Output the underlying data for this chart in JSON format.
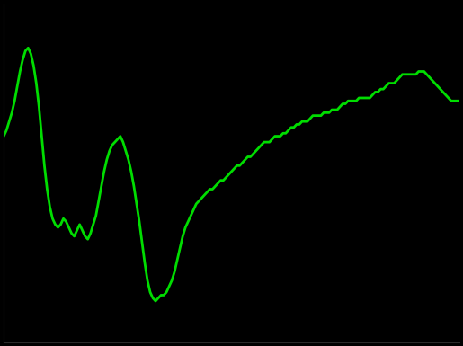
{
  "background_color": "#000000",
  "line_color": "#00dd00",
  "line_width": 2.0,
  "y_values": [
    170,
    172,
    175,
    178,
    182,
    187,
    192,
    196,
    199,
    200,
    198,
    194,
    188,
    180,
    170,
    160,
    152,
    146,
    142,
    140,
    139,
    140,
    142,
    141,
    139,
    137,
    136,
    138,
    140,
    138,
    136,
    135,
    137,
    140,
    143,
    148,
    153,
    158,
    162,
    165,
    167,
    168,
    169,
    170,
    168,
    165,
    162,
    158,
    153,
    147,
    141,
    134,
    127,
    121,
    117,
    115,
    114,
    115,
    116,
    116,
    117,
    119,
    121,
    124,
    128,
    132,
    136,
    139,
    141,
    143,
    145,
    147,
    148,
    149,
    150,
    151,
    152,
    152,
    153,
    154,
    155,
    155,
    156,
    157,
    158,
    159,
    160,
    160,
    161,
    162,
    163,
    163,
    164,
    165,
    166,
    167,
    168,
    168,
    168,
    169,
    170,
    170,
    170,
    171,
    171,
    172,
    173,
    173,
    174,
    174,
    175,
    175,
    175,
    176,
    177,
    177,
    177,
    177,
    178,
    178,
    178,
    179,
    179,
    179,
    180,
    181,
    181,
    182,
    182,
    182,
    182,
    183,
    183,
    183,
    183,
    183,
    184,
    185,
    185,
    186,
    186,
    187,
    188,
    188,
    188,
    189,
    190,
    191,
    191,
    191,
    191,
    191,
    191,
    192,
    192,
    192,
    191,
    190,
    189,
    188,
    187,
    186,
    185,
    184,
    183,
    182,
    182,
    182,
    182,
    182
  ],
  "ylim": [
    100,
    215
  ],
  "xlim": [
    0,
    168
  ],
  "spine_color": "#2a2a2a"
}
